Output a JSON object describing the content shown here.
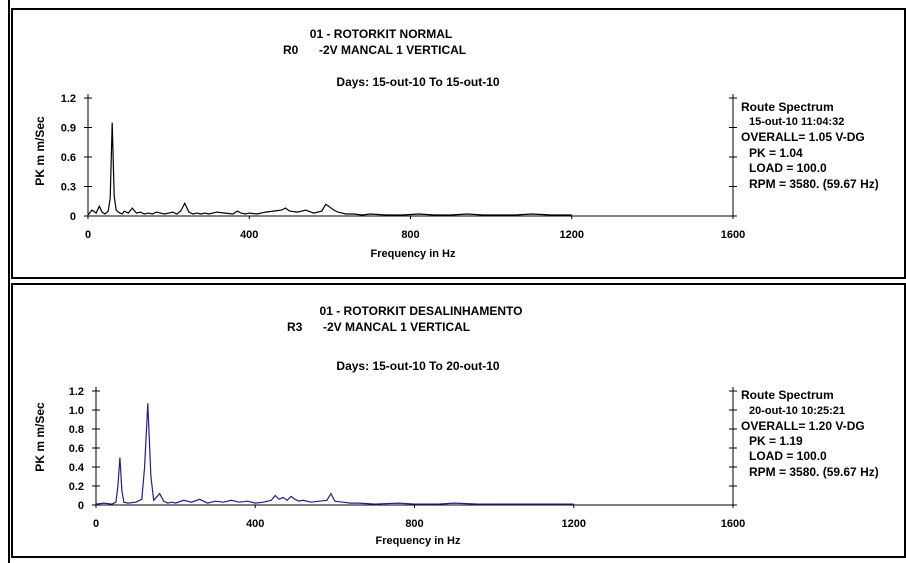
{
  "chart_data": [
    {
      "type": "line",
      "title_line1": "01   - ROTORKIT NORMAL",
      "title_line2_code": "R0",
      "title_line2_rest": "-2V    MANCAL 1 VERTICAL",
      "subtitle": "Days:  15-out-10  To  15-out-10",
      "xlabel": "Frequency in Hz",
      "ylabel": "PK  m m/Sec",
      "xlim": [
        0,
        1600
      ],
      "ylim": [
        0,
        1.2
      ],
      "x_ticks": [
        0,
        400,
        800,
        1200,
        1600
      ],
      "y_ticks": [
        0,
        0.3,
        0.6,
        0.9,
        1.2
      ],
      "y_tick_labels": [
        "0",
        "0.3",
        "0.6",
        "0.9",
        "1.2"
      ],
      "series_color": "#000000",
      "x": [
        0,
        10,
        20,
        28,
        35,
        42,
        50,
        55,
        60,
        65,
        70,
        75,
        80,
        85,
        90,
        100,
        110,
        120,
        130,
        140,
        150,
        160,
        170,
        180,
        190,
        200,
        210,
        220,
        230,
        240,
        250,
        260,
        270,
        280,
        290,
        300,
        320,
        340,
        360,
        370,
        380,
        390,
        400,
        420,
        440,
        460,
        480,
        490,
        500,
        520,
        540,
        560,
        580,
        590,
        600,
        610,
        620,
        630,
        640,
        660,
        680,
        700,
        740,
        780,
        820,
        860,
        900,
        940,
        980,
        1020,
        1060,
        1100,
        1150,
        1200
      ],
      "values": [
        0.01,
        0.06,
        0.03,
        0.1,
        0.04,
        0.02,
        0.05,
        0.18,
        0.95,
        0.2,
        0.06,
        0.04,
        0.03,
        0.02,
        0.05,
        0.03,
        0.08,
        0.03,
        0.04,
        0.02,
        0.03,
        0.02,
        0.04,
        0.03,
        0.02,
        0.03,
        0.04,
        0.02,
        0.05,
        0.13,
        0.04,
        0.02,
        0.03,
        0.02,
        0.03,
        0.02,
        0.04,
        0.03,
        0.02,
        0.05,
        0.03,
        0.02,
        0.03,
        0.02,
        0.04,
        0.05,
        0.06,
        0.08,
        0.05,
        0.04,
        0.06,
        0.03,
        0.05,
        0.12,
        0.09,
        0.06,
        0.04,
        0.03,
        0.02,
        0.02,
        0.01,
        0.02,
        0.01,
        0.01,
        0.02,
        0.01,
        0.01,
        0.02,
        0.01,
        0.01,
        0.01,
        0.02,
        0.01,
        0.01
      ],
      "info": {
        "route": "Route Spectrum",
        "datetime": "15-out-10  11:04:32",
        "overall": "OVERALL= 1.05 V-DG",
        "pk": "PK  =   1.04",
        "load": "LOAD = 100.0",
        "rpm": "RPM =  3580. (59.67 Hz)"
      }
    },
    {
      "type": "line",
      "title_line1": "01   - ROTORKIT DESALINHAMENTO",
      "title_line2_code": "R3",
      "title_line2_rest": "-2V    MANCAL 1 VERTICAL",
      "subtitle": "Days:  15-out-10  To  20-out-10",
      "xlabel": "Frequency in Hz",
      "ylabel": "PK  m m/Sec",
      "xlim": [
        0,
        1600
      ],
      "ylim": [
        0,
        1.2
      ],
      "x_ticks": [
        0,
        400,
        800,
        1200,
        1600
      ],
      "y_ticks": [
        0,
        0.2,
        0.4,
        0.6,
        0.8,
        1.0,
        1.2
      ],
      "y_tick_labels": [
        "0",
        "0.2",
        "0.4",
        "0.6",
        "0.8",
        "1.0",
        "1.2"
      ],
      "series_color": "#1f1f8f",
      "x": [
        0,
        20,
        40,
        50,
        55,
        60,
        65,
        70,
        80,
        100,
        115,
        122,
        130,
        138,
        145,
        160,
        170,
        180,
        190,
        200,
        220,
        240,
        260,
        280,
        300,
        320,
        340,
        360,
        380,
        400,
        420,
        440,
        450,
        460,
        470,
        480,
        490,
        500,
        510,
        520,
        540,
        560,
        580,
        590,
        600,
        620,
        640,
        660,
        700,
        760,
        800,
        860,
        900,
        960,
        1000,
        1100,
        1200
      ],
      "values": [
        0.01,
        0.02,
        0.01,
        0.03,
        0.2,
        0.5,
        0.15,
        0.03,
        0.02,
        0.03,
        0.06,
        0.4,
        1.07,
        0.3,
        0.05,
        0.12,
        0.04,
        0.02,
        0.03,
        0.02,
        0.05,
        0.03,
        0.06,
        0.02,
        0.04,
        0.03,
        0.05,
        0.03,
        0.04,
        0.02,
        0.03,
        0.05,
        0.1,
        0.06,
        0.08,
        0.05,
        0.09,
        0.06,
        0.04,
        0.05,
        0.03,
        0.04,
        0.05,
        0.12,
        0.04,
        0.03,
        0.02,
        0.02,
        0.01,
        0.02,
        0.01,
        0.01,
        0.02,
        0.01,
        0.01,
        0.01,
        0.01
      ],
      "info": {
        "route": "Route Spectrum",
        "datetime": "20-out-10  10:25:21",
        "overall": "OVERALL= 1.20 V-DG",
        "pk": "PK  =   1.19",
        "load": "LOAD = 100.0",
        "rpm": "RPM =  3580. (59.67 Hz)"
      }
    }
  ]
}
